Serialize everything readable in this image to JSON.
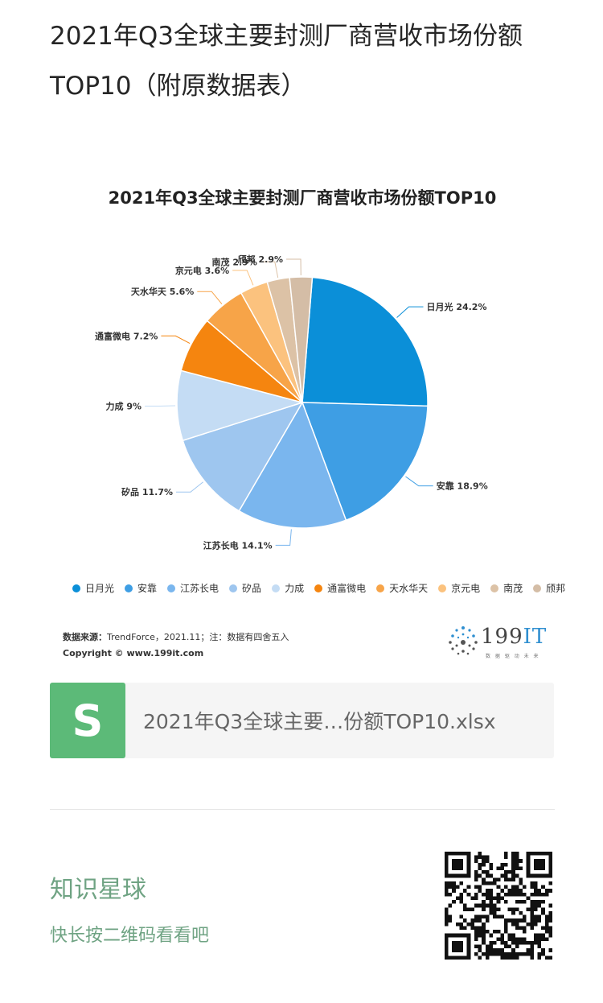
{
  "post": {
    "title": "2021年Q3全球主要封测厂商营收市场份额TOP10（附原数据表）"
  },
  "chart_data": {
    "type": "pie",
    "title": "2021年Q3全球主要封测厂商营收市场份额TOP10",
    "unit": "%",
    "categories": [
      "日月光",
      "安靠",
      "江苏长电",
      "矽品",
      "力成",
      "通富微电",
      "天水华天",
      "京元电",
      "南茂",
      "颀邦"
    ],
    "values": [
      24.2,
      18.9,
      14.1,
      11.7,
      9,
      7.2,
      5.6,
      3.6,
      2.9,
      2.9
    ],
    "slice_labels": [
      "日月光 24.2%",
      "安靠 18.9%",
      "江苏长电 14.1%",
      "矽品 11.7%",
      "力成 9%",
      "通富微电 7.2%",
      "天水华天 5.6%",
      "京元电 3.6%",
      "南茂 2.9%",
      "颀邦 2.9%"
    ],
    "colors": [
      "#0b8fd8",
      "#3e9ee4",
      "#7ab6ee",
      "#9ec6ef",
      "#c4dcf4",
      "#f5850f",
      "#f7a448",
      "#fbc27e",
      "#dcc2a6",
      "#d4bda6"
    ],
    "legend_position": "bottom"
  },
  "source": {
    "label": "数据来源：",
    "text": "TrendForce，2021.11；注：数据有四舍五入",
    "copyright": "Copyright © www.199it.com"
  },
  "brand": {
    "name": "199",
    "name_it": "IT",
    "tagline": "数 据 驱 动 未 来"
  },
  "attachment": {
    "icon_letter": "S",
    "filename": "2021年Q3全球主要…份额TOP10.xlsx"
  },
  "footer": {
    "planet_name": "知识星球",
    "hint": "快长按二维码看看吧"
  }
}
